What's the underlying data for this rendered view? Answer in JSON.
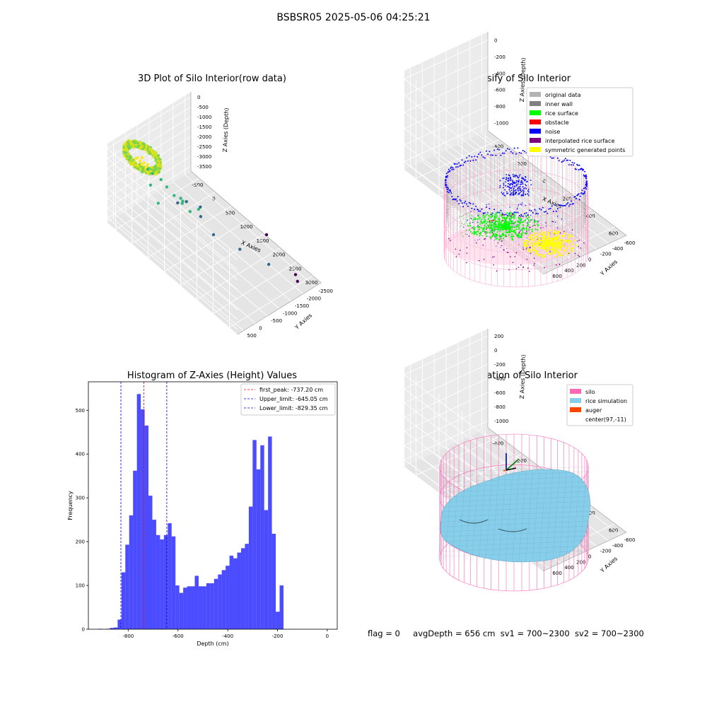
{
  "figure": {
    "suptitle": "BSBSR05 2025-05-06 04:25:21",
    "footer": {
      "flag": "flag = 0",
      "avg_depth": "avgDepth = 656 cm",
      "sv1": "sv1 = 700~2300",
      "sv2": "sv2 = 700~2300"
    }
  },
  "chart_data": [
    {
      "id": "raw",
      "type": "scatter",
      "title": "3D Plot of Silo Interior(row data)",
      "xlabel": "X Axies",
      "ylabel": "Y Axies",
      "zlabel": "Z Axies (Depth)",
      "xticks": [
        "-500",
        "0",
        "500",
        "1000",
        "1500",
        "2000",
        "2500",
        "3000"
      ],
      "yticks": [
        "-2500",
        "-2000",
        "-1500",
        "-1000",
        "-500",
        "0",
        "500"
      ],
      "zticks": [
        "0",
        "-500",
        "-1000",
        "-1500",
        "-2000",
        "-2500",
        "-3000",
        "-3500"
      ],
      "xlim": [
        -650,
        3200
      ],
      "ylim": [
        -2700,
        800
      ],
      "zlim": [
        -3800,
        200
      ],
      "colormap": [
        "#440154",
        "#31688e",
        "#35b779",
        "#fde725"
      ],
      "points": [
        [
          -100,
          400,
          -50
        ],
        [
          0,
          350,
          -60
        ],
        [
          80,
          300,
          -80
        ],
        [
          150,
          250,
          -100
        ],
        [
          -50,
          200,
          -80
        ],
        [
          100,
          420,
          -40
        ],
        [
          200,
          380,
          -60
        ],
        [
          -120,
          300,
          -120
        ],
        [
          50,
          100,
          -600
        ],
        [
          150,
          50,
          -700
        ],
        [
          300,
          -100,
          -900
        ],
        [
          200,
          200,
          -1100
        ],
        [
          400,
          -200,
          -1200
        ],
        [
          600,
          -500,
          -1700
        ],
        [
          700,
          -600,
          -1800
        ],
        [
          900,
          -900,
          -2000
        ],
        [
          500,
          300,
          -1500
        ],
        [
          1000,
          0,
          -1000
        ],
        [
          800,
          -300,
          -1400
        ],
        [
          1200,
          -400,
          -1300
        ],
        [
          1500,
          -600,
          -2300
        ],
        [
          2000,
          -1000,
          -2600
        ],
        [
          2500,
          -1500,
          -3000
        ],
        [
          3000,
          -2000,
          -3500
        ],
        [
          2800,
          -2200,
          -3600
        ],
        [
          300,
          -800,
          -2600
        ],
        [
          700,
          -1200,
          -3000
        ],
        [
          1800,
          -2400,
          -3200
        ],
        [
          1300,
          100,
          -900
        ],
        [
          900,
          200,
          -600
        ]
      ]
    },
    {
      "id": "classify",
      "type": "scatter",
      "title": "3D classify of Silo Interior",
      "xlabel": "X Axies",
      "ylabel": "Y Axies",
      "zlabel": "Z Axies (Depth)",
      "xticks": [
        "-400",
        "-200",
        "0",
        "200",
        "400",
        "600"
      ],
      "yticks": [
        "-600",
        "-400",
        "-200",
        "0",
        "200",
        "400",
        "600"
      ],
      "zticks": [
        "0",
        "-200",
        "-400",
        "-600",
        "-800",
        "-1000"
      ],
      "xlim": [
        -520,
        720
      ],
      "ylim": [
        -680,
        680
      ],
      "zlim": [
        -1150,
        100
      ],
      "legend": [
        {
          "label": "original data",
          "color": "#b3b3b3"
        },
        {
          "label": "inner wall",
          "color": "#808080"
        },
        {
          "label": "rice surface",
          "color": "#00ff00"
        },
        {
          "label": "obstacle",
          "color": "#ff0000"
        },
        {
          "label": "noise",
          "color": "#0000ff"
        },
        {
          "label": "interpolated rice surface",
          "color": "#800080"
        },
        {
          "label": "symmetric generated points",
          "color": "#ffff00"
        }
      ],
      "legend_loc": "upper right"
    },
    {
      "id": "histogram",
      "type": "bar",
      "title": "Histogram of Z-Axies (Height) Values",
      "xlabel": "Depth (cm)",
      "ylabel": "Frequency",
      "xlim": [
        -960,
        40
      ],
      "ylim": [
        0,
        565
      ],
      "xticks": [
        -800,
        -600,
        -400,
        -200,
        0
      ],
      "yticks": [
        0,
        100,
        200,
        300,
        400,
        500
      ],
      "bin_start": -920,
      "bin_width": 15.5,
      "values": [
        1,
        0,
        1,
        3,
        4,
        22,
        130,
        193,
        260,
        362,
        537,
        502,
        465,
        305,
        250,
        215,
        205,
        215,
        242,
        212,
        100,
        83,
        95,
        98,
        98,
        122,
        98,
        98,
        105,
        105,
        115,
        125,
        135,
        145,
        168,
        162,
        175,
        185,
        195,
        280,
        432,
        365,
        420,
        272,
        440,
        218,
        40,
        100
      ],
      "bar_color": "#0000ff",
      "lines": [
        {
          "label": "first_peak: -737.20 cm",
          "x": -737.2,
          "color": "#ff0000"
        },
        {
          "label": "Upper_limit: -645.05 cm",
          "x": -645.05,
          "color": "#0000cd"
        },
        {
          "label": "Lower_limit: -829.35 cm",
          "x": -829.35,
          "color": "#0000cd"
        }
      ],
      "legend_loc": "upper right"
    },
    {
      "id": "simulation",
      "type": "area",
      "title": "3D simulation of Silo Interior",
      "xlabel": "X Axies",
      "ylabel": "Y Axies",
      "zlabel": "Z Axies (Depth)",
      "xticks": [
        "-400",
        "-200",
        "0",
        "200",
        "400",
        "600"
      ],
      "yticks": [
        "-600",
        "-400",
        "-200",
        "0",
        "200",
        "400",
        "600"
      ],
      "zticks": [
        "200",
        "0",
        "-200",
        "-400",
        "-600",
        "-800",
        "-1000"
      ],
      "xlim": [
        -520,
        720
      ],
      "ylim": [
        -680,
        680
      ],
      "zlim": [
        -1150,
        300
      ],
      "legend": [
        {
          "label": "silo",
          "color": "#ff69b4"
        },
        {
          "label": "rice simulation",
          "color": "#87ceeb"
        },
        {
          "label": "auger",
          "color": "#ff4500"
        },
        {
          "label": "center(97,-11)",
          "color": "#ffffff"
        }
      ],
      "legend_loc": "upper right"
    }
  ]
}
